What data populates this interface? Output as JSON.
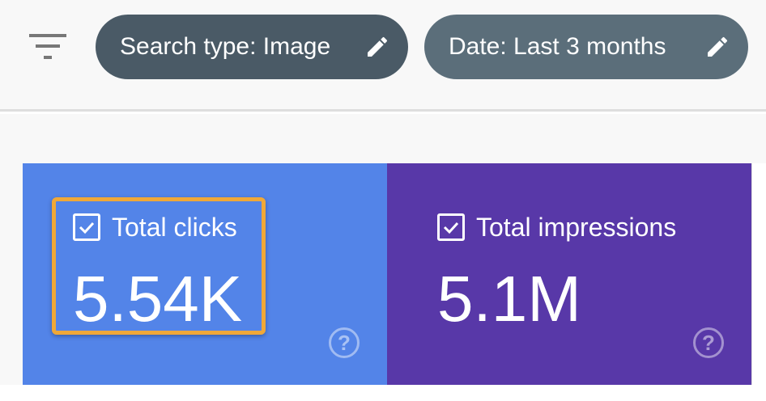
{
  "filters": {
    "chips": [
      {
        "label": "Search type: Image",
        "color": "#4a5a66"
      },
      {
        "label": "Date: Last 3 months",
        "color": "#5b6e7a"
      }
    ]
  },
  "metrics": [
    {
      "label": "Total clicks",
      "value": "5.54K",
      "checked": true,
      "color": "#5384e8",
      "highlighted": true
    },
    {
      "label": "Total impressions",
      "value": "5.1M",
      "checked": true,
      "color": "#5838a8"
    }
  ],
  "help_glyph": "?"
}
